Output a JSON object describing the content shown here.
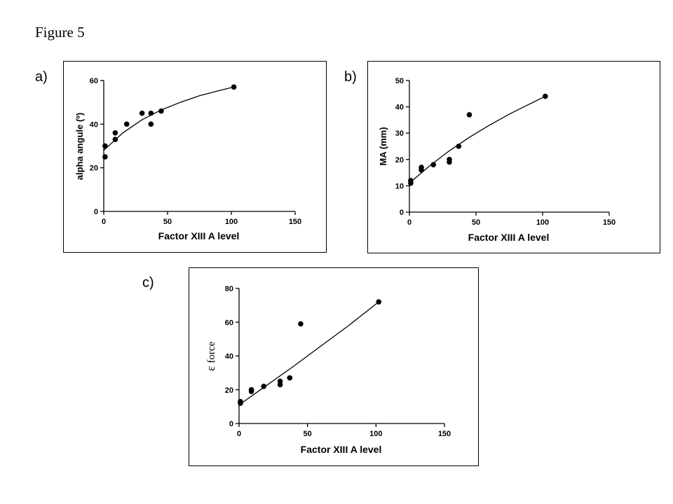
{
  "figure_title": "Figure 5",
  "chart_data": [
    {
      "type": "scatter",
      "panel_label": "a)",
      "xlabel": "Factor XIII A level",
      "ylabel": "alpha angule (º)",
      "xlim": [
        0,
        150
      ],
      "ylim": [
        0,
        60
      ],
      "xticks": [
        0,
        50,
        100,
        150
      ],
      "yticks": [
        0,
        20,
        40,
        60
      ],
      "x": [
        1,
        1,
        9,
        9,
        18,
        30,
        37,
        37,
        45,
        102
      ],
      "y": [
        25,
        30,
        33,
        36,
        40,
        45,
        40,
        45,
        46,
        57
      ],
      "fit": {
        "type": "saturating",
        "x": [
          0,
          15,
          30,
          45,
          60,
          75,
          90,
          102
        ],
        "y": [
          28,
          36,
          42,
          46.5,
          50,
          53,
          55.3,
          57
        ]
      }
    },
    {
      "type": "scatter",
      "panel_label": "b)",
      "xlabel": "Factor XIII A level",
      "ylabel": "MA (mm)",
      "xlim": [
        0,
        150
      ],
      "ylim": [
        0,
        50
      ],
      "xticks": [
        0,
        50,
        100,
        150
      ],
      "yticks": [
        0,
        10,
        20,
        30,
        40,
        50
      ],
      "x": [
        1,
        1,
        9,
        9,
        18,
        30,
        30,
        37,
        45,
        102
      ],
      "y": [
        11,
        12,
        16,
        17,
        18,
        19,
        20,
        25,
        37,
        44
      ],
      "fit": {
        "type": "concave",
        "x": [
          0,
          15,
          30,
          45,
          60,
          75,
          90,
          102
        ],
        "y": [
          11,
          17.5,
          23.3,
          28.4,
          33,
          37.2,
          41,
          44
        ]
      }
    },
    {
      "type": "scatter",
      "panel_label": "c)",
      "xlabel": "Factor XIII A level",
      "ylabel_greek": "ε",
      "ylabel": "force",
      "xlim": [
        0,
        150
      ],
      "ylim": [
        0,
        80
      ],
      "xticks": [
        0,
        50,
        100,
        150
      ],
      "yticks": [
        0,
        20,
        40,
        60,
        80
      ],
      "x": [
        1,
        1,
        9,
        9,
        18,
        30,
        30,
        37,
        45,
        102
      ],
      "y": [
        12,
        13,
        19,
        20,
        22,
        23,
        25,
        27,
        59,
        72
      ],
      "fit": {
        "type": "near-linear",
        "x": [
          0,
          20,
          40,
          60,
          80,
          102
        ],
        "y": [
          11,
          22.5,
          34,
          46,
          58,
          72
        ]
      }
    }
  ]
}
